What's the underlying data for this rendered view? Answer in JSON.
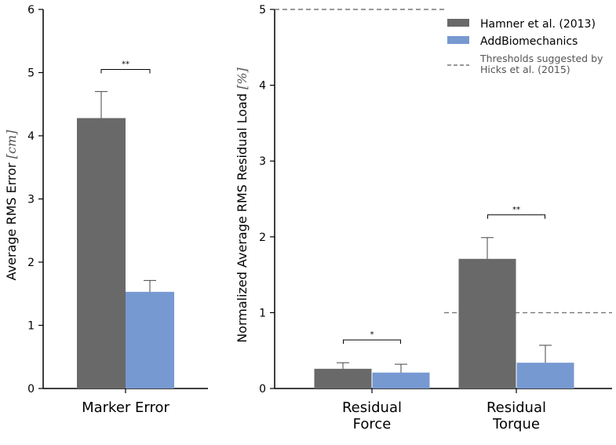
{
  "colors": {
    "hamner": "#696969",
    "addbio": "#7799d1",
    "threshold": "#777777",
    "axis": "#000000"
  },
  "chart_data": [
    {
      "type": "bar",
      "categories": [
        "Marker Error"
      ],
      "series": [
        {
          "name": "Hamner et al. (2013)",
          "values": [
            4.28
          ],
          "errors": [
            0.42
          ]
        },
        {
          "name": "AddBiomechanics",
          "values": [
            1.53
          ],
          "errors": [
            0.18
          ]
        }
      ],
      "ylabel_text": "Average RMS Error ",
      "ylabel_unit": "[cm]",
      "ylim": [
        0,
        6
      ],
      "yticks": [
        0,
        1,
        2,
        3,
        4,
        5,
        6
      ],
      "significance": [
        {
          "category": 0,
          "label": "**",
          "y": 5.05
        }
      ]
    },
    {
      "type": "bar",
      "categories": [
        [
          "Residual",
          "Force"
        ],
        [
          "Residual",
          "Torque"
        ]
      ],
      "series": [
        {
          "name": "Hamner et al. (2013)",
          "values": [
            0.26,
            1.71
          ],
          "errors": [
            0.08,
            0.28
          ]
        },
        {
          "name": "AddBiomechanics",
          "values": [
            0.21,
            0.34
          ],
          "errors": [
            0.11,
            0.23
          ]
        }
      ],
      "ylabel_text": "Normalized Average RMS Residual Load ",
      "ylabel_unit": "[%]",
      "ylim": [
        0,
        5
      ],
      "yticks": [
        0,
        1,
        2,
        3,
        4,
        5
      ],
      "thresholds": [
        {
          "category": 0,
          "value": 5
        },
        {
          "category": 1,
          "value": 1
        }
      ],
      "significance": [
        {
          "category": 0,
          "label": "*",
          "y": 0.64
        },
        {
          "category": 1,
          "label": "**",
          "y": 2.29
        }
      ],
      "legend": {
        "placement": "top-right",
        "entries": [
          {
            "label": "Hamner et al. (2013)",
            "kind": "bar",
            "series": 0
          },
          {
            "label": "AddBiomechanics",
            "kind": "bar",
            "series": 1
          },
          {
            "label": [
              "Thresholds suggested by",
              "Hicks et al. (2015)"
            ],
            "kind": "dashed"
          }
        ]
      }
    }
  ]
}
